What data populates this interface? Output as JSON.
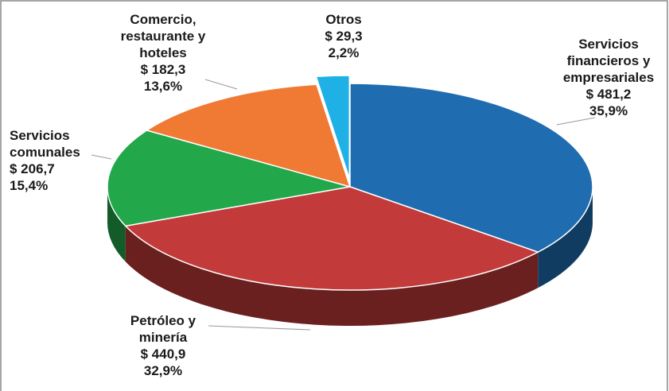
{
  "chart_data": {
    "type": "pie3d",
    "categories": [
      "Servicios\nfinancieros y\nempresariales",
      "Petróleo y\nminería",
      "Servicios\ncomunales",
      "Comercio,\nrestaurante y\nhoteles",
      "Otros"
    ],
    "values": [
      35.9,
      32.9,
      15.4,
      13.6,
      2.2
    ],
    "value_labels": [
      "35,9%",
      "32,9%",
      "15,4%",
      "13,6%",
      "2,2%"
    ],
    "amounts": [
      481.2,
      440.9,
      206.7,
      182.3,
      29.3
    ],
    "amount_labels": [
      "$ 481,2",
      "$ 440,9",
      "$ 206,7",
      "$ 182,3",
      "$ 29,3"
    ],
    "colors": [
      "#1f6db0",
      "#c23b3a",
      "#22a84b",
      "#f07934",
      "#1fb1e6"
    ]
  }
}
